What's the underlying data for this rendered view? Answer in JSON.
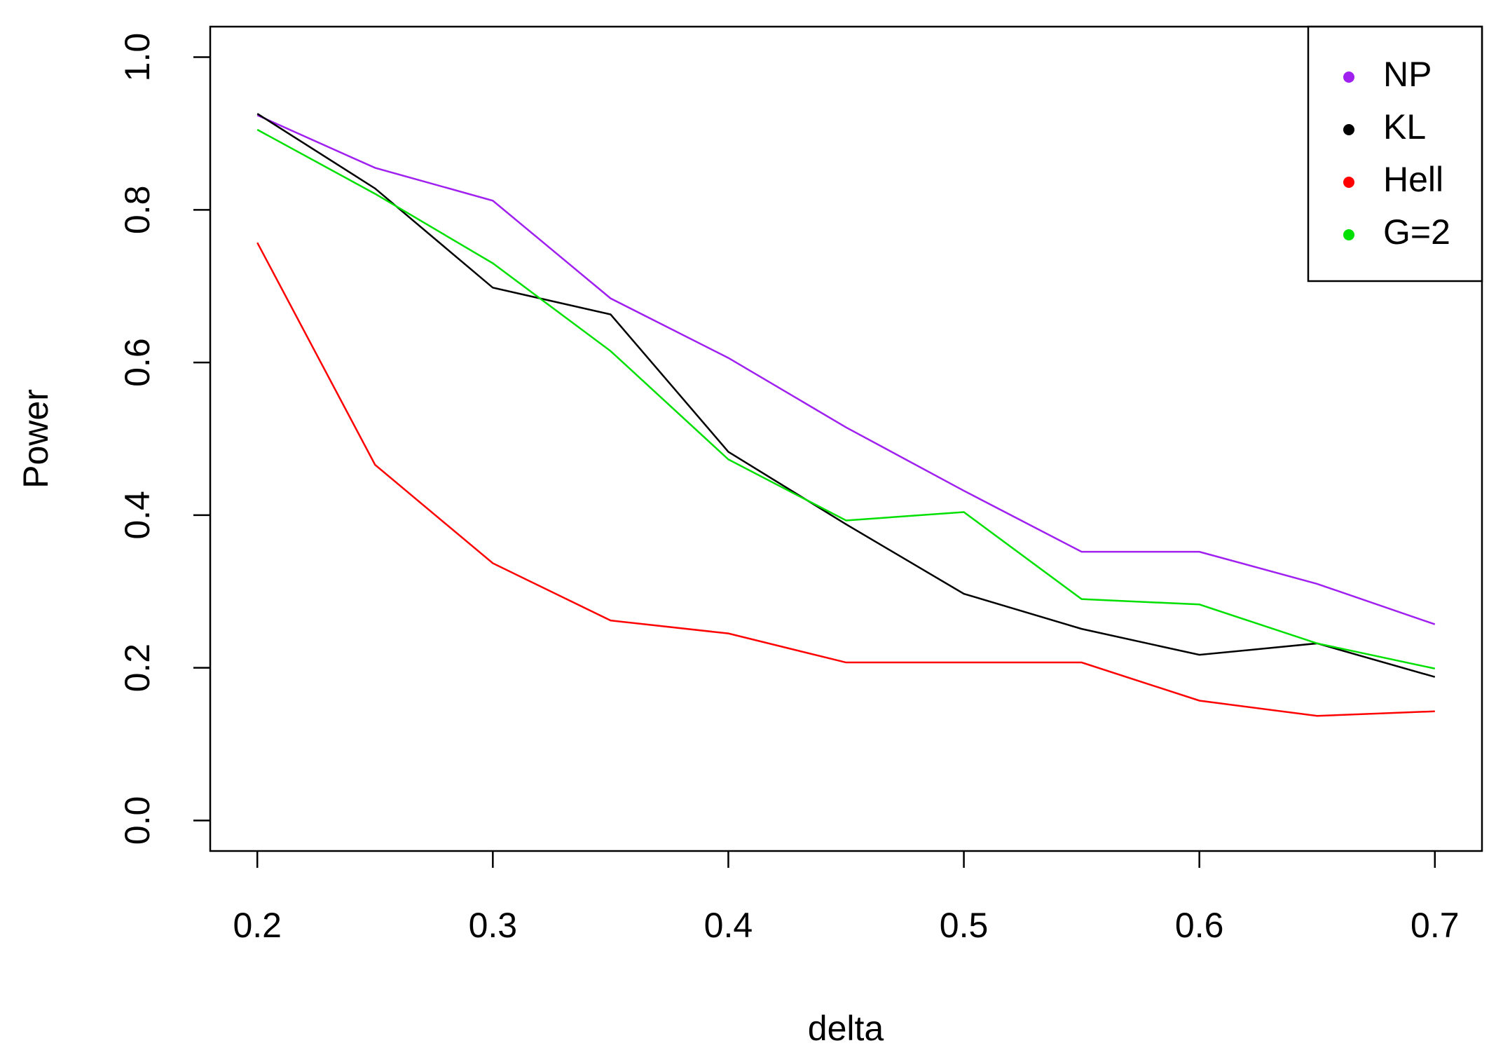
{
  "chart_data": {
    "type": "line",
    "x": [
      0.2,
      0.25,
      0.3,
      0.35,
      0.4,
      0.45,
      0.5,
      0.55,
      0.6,
      0.65,
      0.7
    ],
    "x_label": "delta",
    "y_label": "Power",
    "xlim": [
      0.18,
      0.72
    ],
    "xticks": [
      0.2,
      0.3,
      0.4,
      0.5,
      0.6,
      0.7
    ],
    "ylim": [
      -0.04,
      1.04
    ],
    "yticks": [
      {
        "value": 0,
        "label": "0.0"
      },
      0.2,
      0.4,
      0.6,
      0.8,
      {
        "value": 1,
        "label": "1.0"
      }
    ],
    "legend": "topright",
    "series": [
      {
        "name": "NP",
        "color": "#a020f0",
        "values": [
          0.924,
          0.855,
          0.812,
          0.684,
          0.606,
          0.515,
          0.432,
          0.352,
          0.352,
          0.31,
          0.257
        ]
      },
      {
        "name": "KL",
        "color": "#000000",
        "values": [
          0.926,
          0.828,
          0.698,
          0.663,
          0.483,
          0.388,
          0.297,
          0.251,
          0.217,
          0.232,
          0.188
        ]
      },
      {
        "name": "Hell",
        "color": "#ff0000",
        "values": [
          0.757,
          0.466,
          0.337,
          0.262,
          0.245,
          0.207,
          0.207,
          0.207,
          0.157,
          0.137,
          0.143
        ]
      },
      {
        "name": "G=2",
        "color": "#00e000",
        "values": [
          0.905,
          0.821,
          0.73,
          0.615,
          0.473,
          0.393,
          0.404,
          0.29,
          0.283,
          0.232,
          0.199
        ]
      }
    ]
  }
}
